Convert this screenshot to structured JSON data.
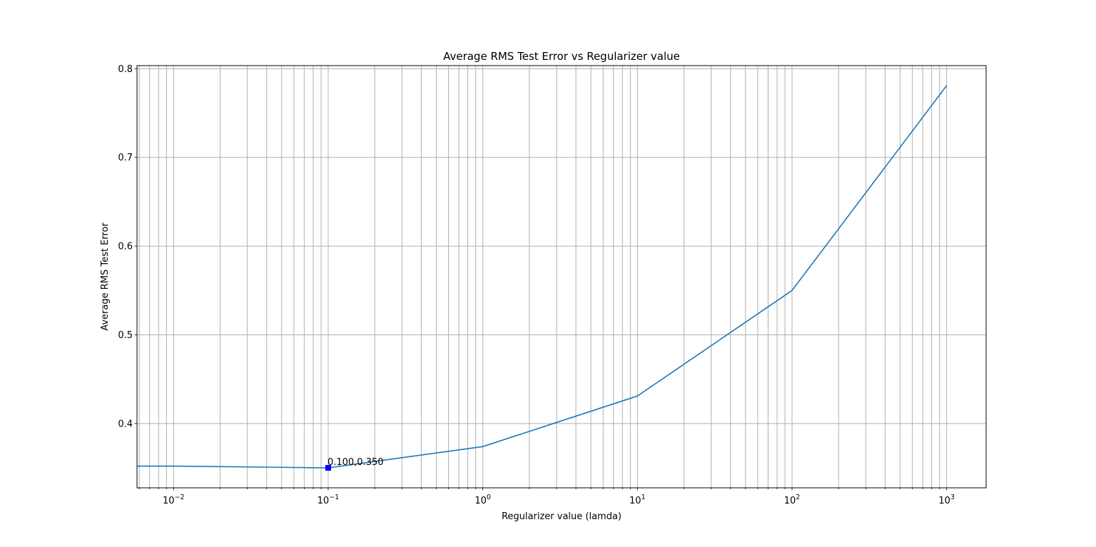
{
  "chart_data": {
    "type": "line",
    "title": "Average RMS Test Error vs Regularizer value",
    "xlabel": "Regularizer value (lamda)",
    "ylabel": "Average RMS Test Error",
    "x_scale": "log",
    "xlim": [
      0.0058,
      1800
    ],
    "ylim": [
      0.3275,
      0.8035
    ],
    "grid": {
      "major": true,
      "minor_x": true
    },
    "x_ticks": [
      {
        "value": 0.01,
        "base": "10",
        "exp": "−2"
      },
      {
        "value": 0.1,
        "base": "10",
        "exp": "−1"
      },
      {
        "value": 1,
        "base": "10",
        "exp": "0"
      },
      {
        "value": 10,
        "base": "10",
        "exp": "1"
      },
      {
        "value": 100,
        "base": "10",
        "exp": "2"
      },
      {
        "value": 1000,
        "base": "10",
        "exp": "3"
      }
    ],
    "y_ticks": [
      {
        "value": 0.4,
        "label": "0.4"
      },
      {
        "value": 0.5,
        "label": "0.5"
      },
      {
        "value": 0.6,
        "label": "0.6"
      },
      {
        "value": 0.7,
        "label": "0.7"
      },
      {
        "value": 0.8,
        "label": "0.8"
      }
    ],
    "series": [
      {
        "color": "#1f77b4",
        "x": [
          0.001,
          0.01,
          0.1,
          1,
          10,
          100,
          1000
        ],
        "y": [
          0.352,
          0.352,
          0.35,
          0.374,
          0.431,
          0.55,
          0.781
        ]
      }
    ],
    "marker": {
      "x": 0.1,
      "y": 0.35,
      "color": "#0000ff",
      "shape": "square"
    },
    "annotation": {
      "text": "0.100,0.350",
      "x": 0.1,
      "y": 0.35
    }
  }
}
